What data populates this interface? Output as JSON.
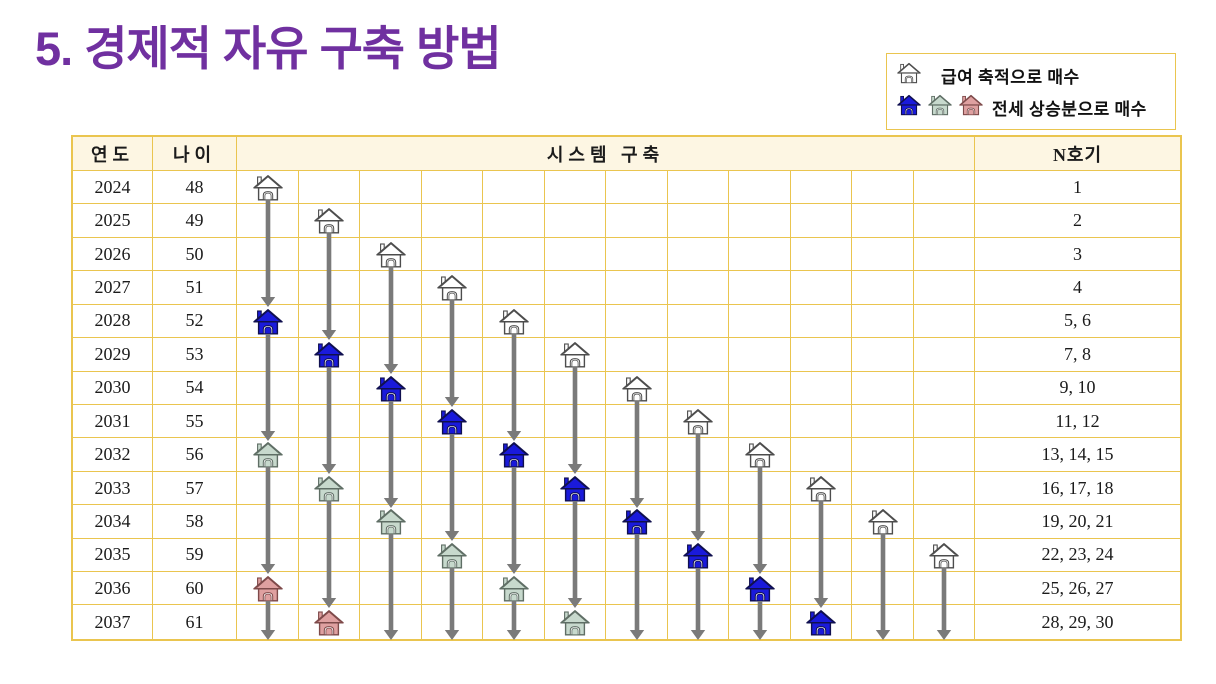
{
  "slide_title": "5. 경제적 자유 구축 방법",
  "legend": {
    "salary": {
      "icons": [
        "white"
      ],
      "label": "급여 축적으로 매수"
    },
    "jeonse": {
      "icons": [
        "blue",
        "green",
        "pink"
      ],
      "label": "전세 상승분으로 매수"
    }
  },
  "table": {
    "headers": {
      "year": "연도",
      "age": "나이",
      "system": "시스템 구축",
      "unit": "N호기"
    },
    "rows": [
      {
        "year": "2024",
        "age": "48",
        "unit": "1"
      },
      {
        "year": "2025",
        "age": "49",
        "unit": "2"
      },
      {
        "year": "2026",
        "age": "50",
        "unit": "3"
      },
      {
        "year": "2027",
        "age": "51",
        "unit": "4"
      },
      {
        "year": "2028",
        "age": "52",
        "unit": "5, 6"
      },
      {
        "year": "2029",
        "age": "53",
        "unit": "7, 8"
      },
      {
        "year": "2030",
        "age": "54",
        "unit": "9, 10"
      },
      {
        "year": "2031",
        "age": "55",
        "unit": "11, 12"
      },
      {
        "year": "2032",
        "age": "56",
        "unit": "13, 14, 15"
      },
      {
        "year": "2033",
        "age": "57",
        "unit": "16, 17, 18"
      },
      {
        "year": "2034",
        "age": "58",
        "unit": "19, 20, 21"
      },
      {
        "year": "2035",
        "age": "59",
        "unit": "22, 23, 24"
      },
      {
        "year": "2036",
        "age": "60",
        "unit": "25, 26, 27"
      },
      {
        "year": "2037",
        "age": "61",
        "unit": "28, 29, 30"
      }
    ]
  },
  "chart_data": {
    "type": "table",
    "title": "시스템 구축",
    "x_categories_years": [
      2024,
      2025,
      2026,
      2027,
      2028,
      2029,
      2030,
      2031,
      2032,
      2033,
      2034,
      2035,
      2036,
      2037
    ],
    "house_legend": {
      "white": "급여 축적으로 매수",
      "blue": "전세 상승분으로 매수",
      "green": "전세 상승분으로 매수",
      "pink": "전세 상승분으로 매수"
    },
    "columns": [
      {
        "column": 1,
        "houses": [
          {
            "year": 2024,
            "type": "white"
          },
          {
            "year": 2028,
            "type": "blue"
          },
          {
            "year": 2032,
            "type": "green"
          },
          {
            "year": 2036,
            "type": "pink"
          }
        ]
      },
      {
        "column": 2,
        "houses": [
          {
            "year": 2025,
            "type": "white"
          },
          {
            "year": 2029,
            "type": "blue"
          },
          {
            "year": 2033,
            "type": "green"
          },
          {
            "year": 2037,
            "type": "pink"
          }
        ]
      },
      {
        "column": 3,
        "houses": [
          {
            "year": 2026,
            "type": "white"
          },
          {
            "year": 2030,
            "type": "blue"
          },
          {
            "year": 2034,
            "type": "green"
          }
        ]
      },
      {
        "column": 4,
        "houses": [
          {
            "year": 2027,
            "type": "white"
          },
          {
            "year": 2031,
            "type": "blue"
          },
          {
            "year": 2035,
            "type": "green"
          }
        ]
      },
      {
        "column": 5,
        "houses": [
          {
            "year": 2028,
            "type": "white"
          },
          {
            "year": 2032,
            "type": "blue"
          },
          {
            "year": 2036,
            "type": "green"
          }
        ]
      },
      {
        "column": 6,
        "houses": [
          {
            "year": 2029,
            "type": "white"
          },
          {
            "year": 2033,
            "type": "blue"
          },
          {
            "year": 2037,
            "type": "green"
          }
        ]
      },
      {
        "column": 7,
        "houses": [
          {
            "year": 2030,
            "type": "white"
          },
          {
            "year": 2034,
            "type": "blue"
          }
        ]
      },
      {
        "column": 8,
        "houses": [
          {
            "year": 2031,
            "type": "white"
          },
          {
            "year": 2035,
            "type": "blue"
          }
        ]
      },
      {
        "column": 9,
        "houses": [
          {
            "year": 2032,
            "type": "white"
          },
          {
            "year": 2036,
            "type": "blue"
          }
        ]
      },
      {
        "column": 10,
        "houses": [
          {
            "year": 2033,
            "type": "white"
          },
          {
            "year": 2037,
            "type": "blue"
          }
        ]
      },
      {
        "column": 11,
        "houses": [
          {
            "year": 2034,
            "type": "white"
          }
        ]
      },
      {
        "column": 12,
        "houses": [
          {
            "year": 2035,
            "type": "white"
          }
        ]
      }
    ]
  },
  "colors": {
    "title": "#7030A0",
    "table_border": "#EAC54F",
    "header_bg": "#FDF6E3",
    "arrow": "#7A7A7A",
    "house_styles": {
      "white": {
        "fill": "#FFFFFF",
        "stroke": "#4D4D4D"
      },
      "blue": {
        "fill": "#1A1ADB",
        "stroke": "#10104F"
      },
      "green": {
        "fill": "#C7D9CD",
        "stroke": "#5F6E65"
      },
      "pink": {
        "fill": "#DFA0A0",
        "stroke": "#7E4A4A"
      }
    }
  }
}
